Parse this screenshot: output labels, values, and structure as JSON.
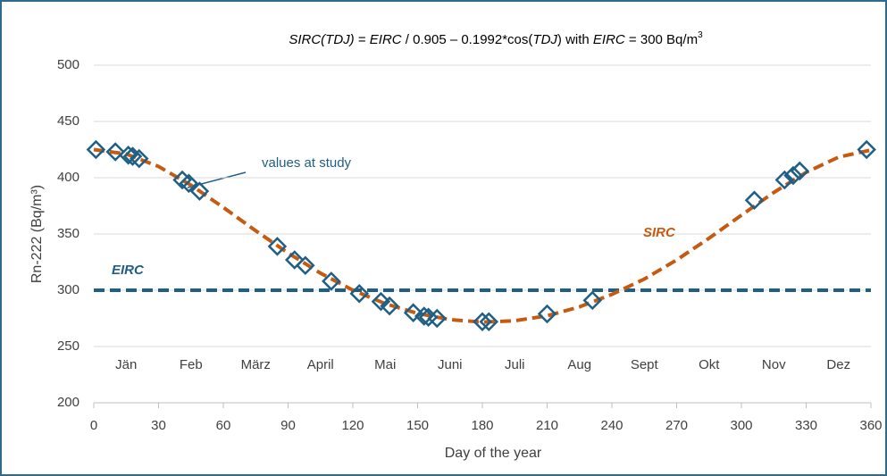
{
  "chart_data": {
    "type": "line",
    "title_parts": [
      {
        "text": "SIRC(TDJ)",
        "style": "italic"
      },
      {
        "text": " = ",
        "style": "normal"
      },
      {
        "text": "EIRC",
        "style": "italic"
      },
      {
        "text": " / 0.905 – 0.1992*cos(",
        "style": "normal"
      },
      {
        "text": "TDJ",
        "style": "italic"
      },
      {
        "text": ")   with ",
        "style": "normal"
      },
      {
        "text": "EIRC",
        "style": "italic"
      },
      {
        "text": " = 300 Bq/m",
        "style": "normal"
      },
      {
        "text": "3",
        "style": "sup"
      }
    ],
    "xlabel": "Day of the year",
    "ylabel": "Rn-222 (Bq/m³)",
    "xlim": [
      0,
      360
    ],
    "ylim": [
      200,
      500
    ],
    "xticks": [
      0,
      30,
      60,
      90,
      120,
      150,
      180,
      210,
      240,
      270,
      300,
      330,
      360
    ],
    "yticks": [
      200,
      250,
      300,
      350,
      400,
      450,
      500
    ],
    "grid": true,
    "months": [
      "Jän",
      "Feb",
      "März",
      "April",
      "Mai",
      "Juni",
      "Juli",
      "Aug",
      "Sept",
      "Okt",
      "Nov",
      "Dez"
    ],
    "series": [
      {
        "name": "EIRC",
        "type": "line",
        "style": "dashed",
        "color": "#1f5f85",
        "x": [
          0,
          360
        ],
        "values": [
          300,
          300
        ]
      },
      {
        "name": "SIRC",
        "type": "line",
        "style": "dashed",
        "color": "#c55a11",
        "x": [
          0,
          15,
          30,
          45,
          60,
          75,
          90,
          105,
          120,
          135,
          150,
          165,
          180,
          195,
          210,
          225,
          240,
          255,
          270,
          285,
          300,
          315,
          330,
          345,
          360
        ],
        "values": [
          425.0,
          421.1,
          410.0,
          393.4,
          373.6,
          352.9,
          333.1,
          315.2,
          300.1,
          288.1,
          279.4,
          273.9,
          271.7,
          272.9,
          277.3,
          285.2,
          296.3,
          309.9,
          326.9,
          346.2,
          366.7,
          386.9,
          404.8,
          418.3,
          424.6
        ]
      },
      {
        "type": "scatter",
        "marker": "diamond",
        "color": "#1f5f85",
        "x": [
          1,
          10,
          16,
          18,
          21,
          41,
          44,
          49,
          85,
          93,
          98,
          110,
          123,
          133,
          137,
          148,
          153,
          155,
          159,
          180,
          183,
          210,
          231,
          306,
          320,
          324,
          327,
          358
        ],
        "values": [
          425,
          423,
          420,
          419,
          417,
          398,
          395,
          388,
          339,
          327,
          322,
          308,
          297,
          290,
          286,
          280,
          277,
          276,
          275,
          272,
          272,
          279,
          291,
          380,
          398,
          402,
          406,
          425
        ]
      }
    ],
    "annotation": "values at study"
  }
}
